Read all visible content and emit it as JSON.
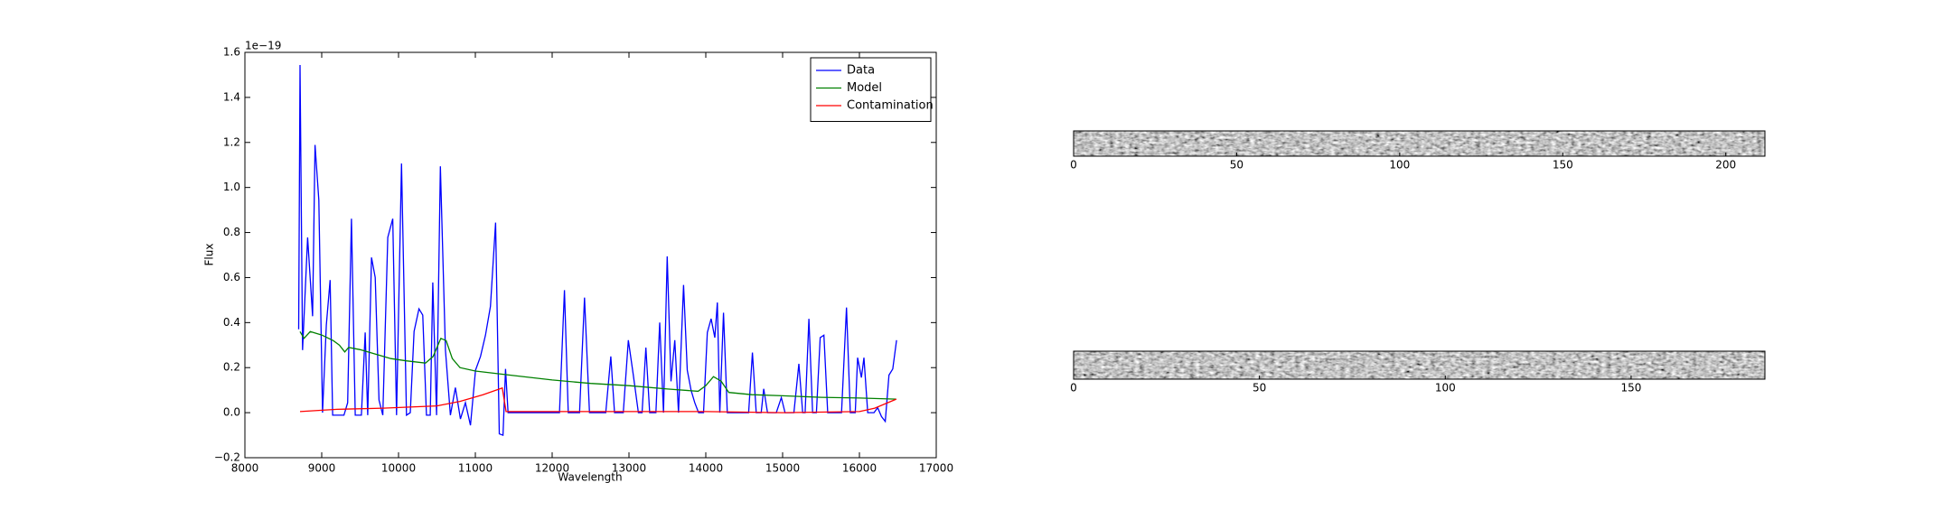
{
  "chart_data": {
    "type": "line",
    "xlabel": "Wavelength",
    "ylabel": "Flux",
    "offset_text": "1e−19",
    "xlim": [
      8000,
      17000
    ],
    "xticks": [
      8000,
      9000,
      10000,
      11000,
      12000,
      13000,
      14000,
      15000,
      16000,
      17000
    ],
    "ylim": [
      -0.2,
      1.6
    ],
    "yticks": [
      {
        "value": -0.2,
        "label": "−0.2"
      },
      {
        "value": 0,
        "label": "0.0"
      },
      0.2,
      0.4,
      0.6,
      0.8,
      {
        "value": 1,
        "label": "1.0"
      },
      1.2,
      1.4,
      1.6
    ],
    "legend": "upper right",
    "series": [
      {
        "name": "Data",
        "color": "#0000ff",
        "x": [
          8700,
          8718,
          8750,
          8816,
          8881,
          8913,
          8962,
          9011,
          9060,
          9109,
          9142,
          9289,
          9338,
          9387,
          9436,
          9517,
          9566,
          9599,
          9648,
          9697,
          9746,
          9795,
          9860,
          9925,
          9974,
          10039,
          10104,
          10153,
          10202,
          10266,
          10315,
          10364,
          10413,
          10446,
          10495,
          10545,
          10610,
          10675,
          10740,
          10806,
          10871,
          10936,
          11002,
          11067,
          11132,
          11197,
          11263,
          11312,
          11360,
          11393,
          11426,
          12095,
          12160,
          12209,
          12356,
          12421,
          12486,
          12698,
          12763,
          12812,
          12926,
          12992,
          13057,
          13122,
          13171,
          13220,
          13269,
          13351,
          13400,
          13449,
          13498,
          13547,
          13596,
          13645,
          13710,
          13759,
          13808,
          13857,
          13906,
          13971,
          14020,
          14069,
          14118,
          14150,
          14182,
          14231,
          14280,
          14558,
          14607,
          14656,
          14721,
          14754,
          14803,
          14918,
          14983,
          15032,
          15147,
          15212,
          15261,
          15293,
          15342,
          15391,
          15440,
          15489,
          15538,
          15587,
          15767,
          15832,
          15881,
          15946,
          15977,
          16026,
          16059,
          16108,
          16190,
          16238,
          16287,
          16336,
          16385,
          16434,
          16483
        ],
        "values": [
          0.37,
          1.544,
          0.278,
          0.778,
          0.428,
          1.189,
          0.944,
          0.0,
          0.389,
          0.589,
          -0.011,
          -0.011,
          0.044,
          0.861,
          -0.011,
          -0.011,
          0.356,
          -0.011,
          0.689,
          0.6,
          0.056,
          -0.011,
          0.778,
          0.861,
          -0.011,
          1.106,
          -0.011,
          0.0,
          0.361,
          0.461,
          0.433,
          -0.011,
          -0.011,
          0.578,
          -0.011,
          1.094,
          0.278,
          -0.011,
          0.111,
          -0.028,
          0.044,
          -0.056,
          0.189,
          0.25,
          0.344,
          0.472,
          0.844,
          -0.094,
          -0.1,
          0.194,
          0.0,
          0.0,
          0.544,
          0.0,
          0.0,
          0.511,
          0.0,
          0.0,
          0.25,
          0.0,
          0.0,
          0.322,
          0.167,
          0.0,
          0.0,
          0.289,
          0.0,
          0.0,
          0.4,
          0.0,
          0.694,
          0.139,
          0.322,
          0.0,
          0.567,
          0.189,
          0.1,
          0.044,
          0.0,
          0.0,
          0.356,
          0.417,
          0.333,
          0.489,
          0.0,
          0.444,
          0.0,
          0.0,
          0.267,
          0.0,
          0.0,
          0.106,
          0.0,
          0.0,
          0.067,
          0.0,
          0.0,
          0.217,
          0.0,
          0.0,
          0.417,
          0.0,
          0.0,
          0.333,
          0.344,
          0.0,
          0.0,
          0.467,
          0.0,
          0.0,
          0.244,
          0.156,
          0.244,
          0.0,
          0.0,
          0.022,
          -0.017,
          -0.039,
          0.167,
          0.194,
          0.322
        ]
      },
      {
        "name": "Model",
        "color": "#008000",
        "x": [
          8718,
          8770,
          8850,
          9000,
          9150,
          9230,
          9300,
          9350,
          9500,
          9700,
          9900,
          10100,
          10350,
          10450,
          10550,
          10620,
          10700,
          10800,
          11000,
          11500,
          12000,
          12500,
          13000,
          13500,
          13900,
          14000,
          14100,
          14200,
          14300,
          14600,
          15000,
          15500,
          16000,
          16480
        ],
        "values": [
          0.36,
          0.33,
          0.36,
          0.345,
          0.32,
          0.3,
          0.27,
          0.29,
          0.28,
          0.26,
          0.24,
          0.23,
          0.22,
          0.25,
          0.33,
          0.32,
          0.24,
          0.2,
          0.185,
          0.165,
          0.145,
          0.13,
          0.12,
          0.105,
          0.095,
          0.12,
          0.16,
          0.14,
          0.09,
          0.08,
          0.075,
          0.068,
          0.065,
          0.06
        ]
      },
      {
        "name": "Contamination",
        "color": "#ff0000",
        "x": [
          8718,
          9200,
          9800,
          10500,
          10800,
          11100,
          11350,
          11400,
          12000,
          14000,
          15000,
          16000,
          16200,
          16480
        ],
        "values": [
          0.005,
          0.015,
          0.02,
          0.03,
          0.05,
          0.08,
          0.11,
          0.005,
          0.005,
          0.005,
          0.0,
          0.005,
          0.02,
          0.06
        ]
      }
    ]
  },
  "images": [
    {
      "xlim": [
        0,
        212
      ],
      "xticks": [
        0,
        50,
        100,
        150,
        200
      ]
    },
    {
      "xlim": [
        0,
        186
      ],
      "xticks": [
        0,
        50,
        100,
        150
      ]
    }
  ]
}
